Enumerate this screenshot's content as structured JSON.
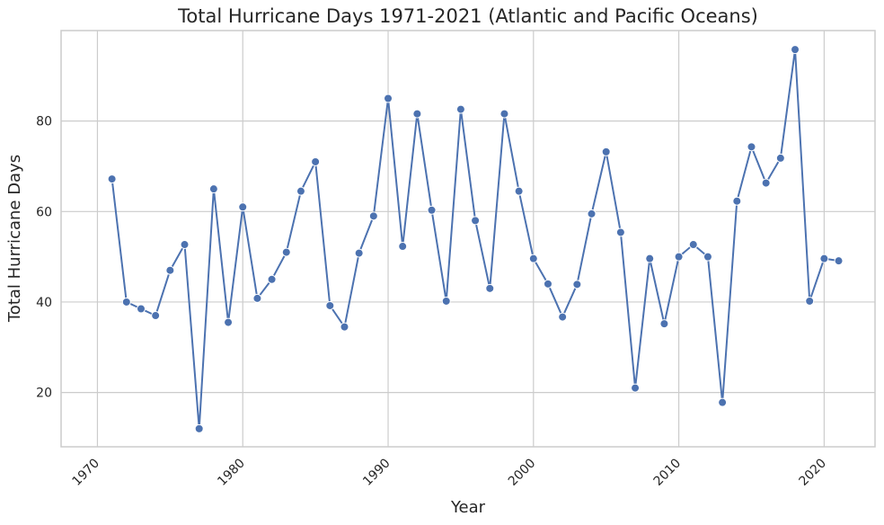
{
  "chart_data": {
    "type": "line",
    "title": "Total Hurricane Days 1971-2021 (Atlantic and Pacific Oceans)",
    "xlabel": "Year",
    "ylabel": "Total Hurricane Days",
    "xlim": [
      1967.5,
      2023.5
    ],
    "ylim": [
      8,
      100
    ],
    "xticks": [
      1970,
      1980,
      1990,
      2000,
      2010,
      2020
    ],
    "yticks": [
      20,
      40,
      60,
      80
    ],
    "grid": true,
    "legend": "none",
    "color": "#4c72b0",
    "x": [
      1971,
      1972,
      1973,
      1974,
      1975,
      1976,
      1977,
      1978,
      1979,
      1980,
      1981,
      1982,
      1983,
      1984,
      1985,
      1986,
      1987,
      1988,
      1989,
      1990,
      1991,
      1992,
      1993,
      1994,
      1995,
      1996,
      1997,
      1998,
      1999,
      2000,
      2001,
      2002,
      2003,
      2004,
      2005,
      2006,
      2007,
      2008,
      2009,
      2010,
      2011,
      2012,
      2013,
      2014,
      2015,
      2016,
      2017,
      2018,
      2019,
      2020,
      2021
    ],
    "y": [
      67.2,
      40.0,
      38.5,
      37.0,
      47.0,
      52.7,
      12.0,
      65.0,
      35.5,
      61.0,
      40.8,
      45.0,
      51.0,
      64.5,
      71.0,
      39.2,
      34.5,
      50.8,
      59.0,
      85.0,
      52.3,
      81.6,
      60.3,
      40.2,
      82.6,
      58.0,
      43.0,
      81.6,
      64.5,
      49.6,
      44.0,
      36.7,
      43.9,
      59.5,
      73.2,
      55.4,
      21.0,
      49.6,
      35.2,
      50.0,
      52.7,
      50.0,
      17.8,
      62.3,
      74.3,
      66.3,
      71.8,
      95.8,
      40.2,
      49.6,
      49.1
    ]
  }
}
